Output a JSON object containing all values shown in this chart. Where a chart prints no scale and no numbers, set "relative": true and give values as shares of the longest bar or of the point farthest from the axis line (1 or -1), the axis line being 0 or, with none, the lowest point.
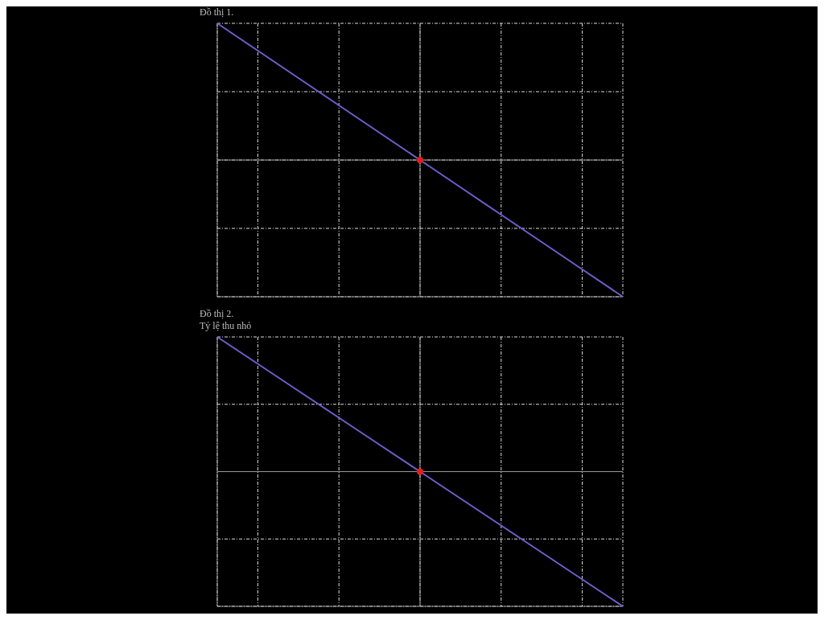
{
  "chart_data": [
    {
      "type": "line",
      "title": "Đồ thị 1.",
      "relative": true,
      "grid": true,
      "marker": "none",
      "categories": [
        null,
        null,
        null,
        null,
        null,
        null,
        null,
        null,
        null,
        null,
        null
      ],
      "series": [
        {
          "color": "#6f5fd0",
          "values": [
            1,
            0.8,
            0.6,
            0.4,
            0.2,
            0,
            -0.2,
            -0.4,
            -0.6,
            -0.8,
            -1
          ]
        }
      ]
    },
    {
      "type": "line",
      "title": "Đồ thị 2.",
      "subtitle": "Tỷ lệ thu nhỏ",
      "relative": true,
      "grid": true,
      "marker": "none",
      "categories": [
        null,
        null,
        null,
        null,
        null,
        null,
        null,
        null,
        null,
        null,
        null
      ],
      "series": [
        {
          "color": "#6f5fd0",
          "values": [
            1,
            0.8,
            0.6,
            0.4,
            0.2,
            0,
            -0.2,
            -0.4,
            -0.6,
            -0.8,
            -1
          ]
        }
      ]
    }
  ]
}
